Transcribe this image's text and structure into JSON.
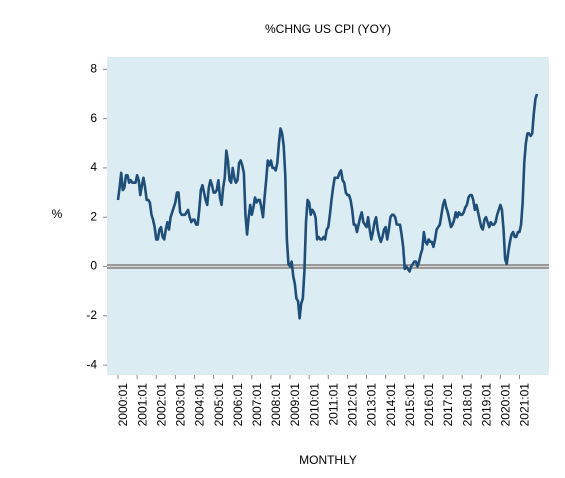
{
  "chart_data": {
    "type": "line",
    "title": "%CHNG US CPI (YOY)",
    "y_label": "%",
    "x_label": "MONTHLY",
    "background": "#dbecf3",
    "zero_line": true,
    "ylim": [
      -4.4,
      8.5
    ],
    "yticks": [
      -4,
      -2,
      0,
      2,
      4,
      6,
      8
    ],
    "categories": [
      "2000:01",
      null,
      null,
      null,
      null,
      null,
      null,
      null,
      null,
      null,
      null,
      null,
      "2001:01",
      null,
      null,
      null,
      null,
      null,
      null,
      null,
      null,
      null,
      null,
      null,
      "2002:01",
      null,
      null,
      null,
      null,
      null,
      null,
      null,
      null,
      null,
      null,
      null,
      "2003:01",
      null,
      null,
      null,
      null,
      null,
      null,
      null,
      null,
      null,
      null,
      null,
      "2004:01",
      null,
      null,
      null,
      null,
      null,
      null,
      null,
      null,
      null,
      null,
      null,
      "2005:01",
      null,
      null,
      null,
      null,
      null,
      null,
      null,
      null,
      null,
      null,
      null,
      "2006:01",
      null,
      null,
      null,
      null,
      null,
      null,
      null,
      null,
      null,
      null,
      null,
      "2007:01",
      null,
      null,
      null,
      null,
      null,
      null,
      null,
      null,
      null,
      null,
      null,
      "2008:01",
      null,
      null,
      null,
      null,
      null,
      null,
      null,
      null,
      null,
      null,
      null,
      "2009:01",
      null,
      null,
      null,
      null,
      null,
      null,
      null,
      null,
      null,
      null,
      null,
      "2010:01",
      null,
      null,
      null,
      null,
      null,
      null,
      null,
      null,
      null,
      null,
      null,
      "2011:01",
      null,
      null,
      null,
      null,
      null,
      null,
      null,
      null,
      null,
      null,
      null,
      "2012:01",
      null,
      null,
      null,
      null,
      null,
      null,
      null,
      null,
      null,
      null,
      null,
      "2013:01",
      null,
      null,
      null,
      null,
      null,
      null,
      null,
      null,
      null,
      null,
      null,
      "2014:01",
      null,
      null,
      null,
      null,
      null,
      null,
      null,
      null,
      null,
      null,
      null,
      "2015:01",
      null,
      null,
      null,
      null,
      null,
      null,
      null,
      null,
      null,
      null,
      null,
      "2016:01",
      null,
      null,
      null,
      null,
      null,
      null,
      null,
      null,
      null,
      null,
      null,
      "2017:01",
      null,
      null,
      null,
      null,
      null,
      null,
      null,
      null,
      null,
      null,
      null,
      "2018:01",
      null,
      null,
      null,
      null,
      null,
      null,
      null,
      null,
      null,
      null,
      null,
      "2019:01",
      null,
      null,
      null,
      null,
      null,
      null,
      null,
      null,
      null,
      null,
      null,
      "2020:01",
      null,
      null,
      null,
      null,
      null,
      null,
      null,
      null,
      null,
      null,
      null,
      "2021:01",
      null,
      null,
      null,
      null,
      null,
      null,
      null,
      null,
      null,
      null,
      null
    ],
    "series": [
      {
        "color": "#1f4e79",
        "values": [
          2.7,
          3.2,
          3.8,
          3.1,
          3.2,
          3.7,
          3.7,
          3.4,
          3.5,
          3.4,
          3.4,
          3.4,
          3.7,
          3.5,
          2.9,
          3.3,
          3.6,
          3.2,
          2.7,
          2.7,
          2.6,
          2.1,
          1.9,
          1.6,
          1.1,
          1.1,
          1.5,
          1.6,
          1.2,
          1.1,
          1.5,
          1.8,
          1.5,
          2.0,
          2.2,
          2.4,
          2.6,
          3.0,
          3.0,
          2.2,
          2.1,
          2.1,
          2.1,
          2.2,
          2.3,
          2.0,
          1.8,
          1.9,
          1.9,
          1.7,
          1.7,
          2.3,
          3.1,
          3.3,
          3.0,
          2.7,
          2.5,
          3.2,
          3.5,
          3.3,
          3.0,
          3.0,
          3.1,
          3.5,
          2.8,
          2.5,
          3.2,
          3.6,
          4.7,
          4.3,
          3.5,
          3.4,
          4.0,
          3.6,
          3.4,
          3.5,
          4.2,
          4.3,
          4.1,
          3.8,
          2.1,
          1.3,
          2.0,
          2.5,
          2.1,
          2.4,
          2.8,
          2.6,
          2.7,
          2.7,
          2.4,
          2.0,
          2.8,
          3.5,
          4.3,
          4.1,
          4.3,
          4.0,
          4.0,
          3.9,
          4.2,
          5.0,
          5.6,
          5.4,
          4.9,
          3.7,
          1.1,
          0.1,
          0.0,
          0.2,
          -0.4,
          -0.7,
          -1.3,
          -1.4,
          -2.1,
          -1.5,
          -1.3,
          -0.2,
          1.8,
          2.7,
          2.6,
          2.1,
          2.3,
          2.2,
          2.0,
          1.1,
          1.2,
          1.1,
          1.1,
          1.2,
          1.1,
          1.5,
          1.6,
          2.1,
          2.7,
          3.2,
          3.6,
          3.6,
          3.6,
          3.8,
          3.9,
          3.5,
          3.4,
          3.0,
          2.9,
          2.9,
          2.7,
          2.3,
          1.7,
          1.7,
          1.4,
          1.7,
          2.0,
          2.2,
          1.8,
          1.7,
          1.6,
          2.0,
          1.5,
          1.1,
          1.4,
          1.8,
          2.0,
          1.5,
          1.2,
          1.0,
          1.2,
          1.5,
          1.6,
          1.1,
          1.5,
          2.0,
          2.1,
          2.1,
          2.0,
          1.7,
          1.7,
          1.7,
          1.3,
          0.8,
          -0.1,
          0.0,
          -0.1,
          -0.2,
          0.0,
          0.1,
          0.2,
          0.2,
          0.0,
          0.2,
          0.5,
          0.7,
          1.4,
          1.0,
          0.9,
          1.1,
          1.0,
          1.0,
          0.8,
          1.1,
          1.5,
          1.6,
          1.7,
          2.1,
          2.5,
          2.7,
          2.4,
          2.2,
          1.9,
          1.6,
          1.7,
          1.9,
          2.2,
          2.0,
          2.2,
          2.1,
          2.1,
          2.2,
          2.4,
          2.5,
          2.8,
          2.9,
          2.9,
          2.7,
          2.3,
          2.5,
          2.2,
          1.9,
          1.6,
          1.5,
          1.9,
          2.0,
          1.8,
          1.6,
          1.8,
          1.7,
          1.7,
          1.8,
          2.1,
          2.3,
          2.5,
          2.3,
          1.5,
          0.3,
          0.1,
          0.6,
          1.0,
          1.3,
          1.4,
          1.2,
          1.2,
          1.4,
          1.4,
          1.7,
          2.6,
          4.2,
          5.0,
          5.4,
          5.4,
          5.3,
          5.4,
          6.2,
          6.8,
          7.0
        ]
      }
    ]
  }
}
